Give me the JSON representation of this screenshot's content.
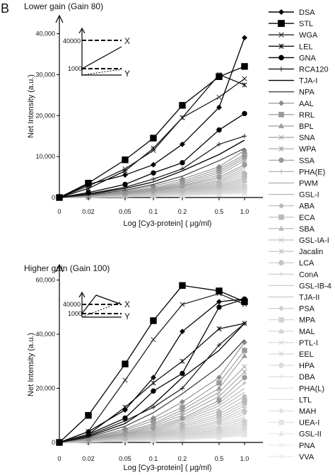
{
  "panel_label": "B",
  "legend": {
    "entries": [
      "DSA",
      "STL",
      "WGA",
      "LEL",
      "GNA",
      "RCA120",
      "TJA-I",
      "NPA",
      "AAL",
      "RRL",
      "BPL",
      "SNA",
      "WPA",
      "SSA",
      "PHA(E)",
      "PWM",
      "GSL-I",
      "ABA",
      "ECA",
      "SBA",
      "GSL-IA-I",
      "Jacalin",
      "LCA",
      "ConA",
      "GSL-IB-4",
      "TJA-II",
      "PSA",
      "MPA",
      "MAL",
      "PTL-I",
      "EEL",
      "HPA",
      "DBA",
      "PHA(L)",
      "LTL",
      "MAH",
      "UEA-I",
      "GSL-II",
      "PNA",
      "VVA"
    ],
    "markers": [
      "diamond",
      "square",
      "x",
      "star",
      "circle",
      "plus",
      "line",
      "line",
      "diamond",
      "square",
      "triangle",
      "x",
      "star",
      "circle",
      "plus",
      "line",
      "line",
      "diamond",
      "square",
      "triangle",
      "x",
      "star",
      "circle",
      "plus",
      "line",
      "line",
      "diamond",
      "square",
      "triangle",
      "x",
      "star",
      "circle",
      "plus",
      "line",
      "line",
      "diamond",
      "square",
      "triangle",
      "x",
      "star"
    ],
    "colors": [
      "#000000",
      "#000000",
      "#222222",
      "#111111",
      "#000000",
      "#222222",
      "#000000",
      "#444444",
      "#8a8a8a",
      "#999999",
      "#9c9c9c",
      "#a0a0a0",
      "#a4a4a4",
      "#9a9a9a",
      "#b0b0b0",
      "#b0b0b0",
      "#b4b4b4",
      "#b8b8b8",
      "#b8b8b8",
      "#bcbcbc",
      "#c0c0c0",
      "#c4c4c4",
      "#c4c4c4",
      "#c8c8c8",
      "#cbcbcb",
      "#cbcbcb",
      "#cecece",
      "#d2d2d2",
      "#d2d2d2",
      "#d6d6d6",
      "#d8d8d8",
      "#dadada",
      "#dcdcdc",
      "#dedede",
      "#e0e0e0",
      "#e2e2e2",
      "#e4e4e4",
      "#e6e6e6",
      "#e8e8e8",
      "#eaeaea"
    ]
  },
  "chart_data": [
    {
      "type": "line",
      "title": "Lower gain (Gain 80)",
      "xlabel": "Log [Cy3-protein]    ( μg/ml)",
      "ylabel": "Net Intensity (a.u.)",
      "x": [
        "0",
        "0.02",
        "0.05",
        "0.1",
        "0.2",
        "0.5",
        "1.0"
      ],
      "yticks": [
        "0",
        "10,000",
        "20,000",
        "30,000",
        "40,000"
      ],
      "ylim": [
        0,
        42000
      ],
      "inset": {
        "labels": [
          "40000",
          "1000",
          "X",
          "Y"
        ]
      },
      "series": [
        {
          "name": "DSA",
          "values": [
            0,
            3200,
            5500,
            8000,
            13000,
            22000,
            39000
          ]
        },
        {
          "name": "STL",
          "values": [
            0,
            3500,
            9200,
            14500,
            22500,
            29500,
            32000
          ]
        },
        {
          "name": "WGA",
          "values": [
            0,
            2800,
            7000,
            11500,
            19500,
            24500,
            29000
          ]
        },
        {
          "name": "LEL",
          "values": [
            0,
            2200,
            6500,
            12000,
            19500,
            30000,
            27500
          ]
        },
        {
          "name": "GNA",
          "values": [
            0,
            1200,
            3200,
            6000,
            8500,
            16500,
            20500
          ]
        },
        {
          "name": "RCA120",
          "values": [
            0,
            900,
            2500,
            4500,
            7000,
            13000,
            15000
          ]
        },
        {
          "name": "TJA-I",
          "values": [
            0,
            800,
            2200,
            3800,
            6500,
            10500,
            14000
          ]
        },
        {
          "name": "NPA",
          "values": [
            0,
            600,
            1800,
            3200,
            5200,
            9000,
            12000
          ]
        },
        {
          "name": "AAL",
          "values": [
            0,
            500,
            1500,
            2800,
            4500,
            7500,
            11500
          ]
        },
        {
          "name": "RRL",
          "values": [
            0,
            450,
            1300,
            2400,
            4000,
            7000,
            10500
          ]
        },
        {
          "name": "BPL",
          "values": [
            0,
            400,
            1200,
            2200,
            3600,
            6500,
            10000
          ]
        },
        {
          "name": "SNA",
          "values": [
            0,
            380,
            1100,
            2000,
            3300,
            6000,
            9500
          ]
        },
        {
          "name": "WPA",
          "values": [
            0,
            350,
            1000,
            1900,
            3000,
            5500,
            9000
          ]
        },
        {
          "name": "SSA",
          "values": [
            0,
            330,
            950,
            1700,
            2800,
            5000,
            8000
          ]
        },
        {
          "name": "PHA(E)",
          "values": [
            0,
            300,
            900,
            1600,
            2600,
            4600,
            7500
          ]
        },
        {
          "name": "PWM",
          "values": [
            0,
            280,
            800,
            1500,
            2400,
            4200,
            7000
          ]
        },
        {
          "name": "GSL-I",
          "values": [
            0,
            260,
            750,
            1400,
            2200,
            3900,
            6500
          ]
        },
        {
          "name": "ABA",
          "values": [
            0,
            240,
            700,
            1300,
            2000,
            3600,
            6000
          ]
        },
        {
          "name": "ECA",
          "values": [
            0,
            220,
            650,
            1200,
            1900,
            3300,
            5500
          ]
        },
        {
          "name": "SBA",
          "values": [
            0,
            200,
            600,
            1100,
            1800,
            3000,
            5000
          ]
        },
        {
          "name": "GSL-IA-I",
          "values": [
            0,
            190,
            550,
            1000,
            1650,
            2800,
            4600
          ]
        },
        {
          "name": "Jacalin",
          "values": [
            0,
            180,
            500,
            950,
            1500,
            2600,
            4300
          ]
        },
        {
          "name": "LCA",
          "values": [
            0,
            170,
            480,
            900,
            1400,
            2400,
            4000
          ]
        },
        {
          "name": "ConA",
          "values": [
            0,
            160,
            450,
            850,
            1300,
            2200,
            3700
          ]
        },
        {
          "name": "GSL-IB-4",
          "values": [
            0,
            150,
            420,
            800,
            1200,
            2000,
            3400
          ]
        },
        {
          "name": "TJA-II",
          "values": [
            0,
            140,
            400,
            750,
            1100,
            1900,
            3100
          ]
        },
        {
          "name": "PSA",
          "values": [
            0,
            130,
            380,
            700,
            1050,
            1800,
            2800
          ]
        },
        {
          "name": "MPA",
          "values": [
            0,
            120,
            350,
            650,
            1000,
            1650,
            2600
          ]
        },
        {
          "name": "MAL",
          "values": [
            0,
            110,
            320,
            600,
            900,
            1500,
            2400
          ]
        },
        {
          "name": "PTL-I",
          "values": [
            0,
            100,
            300,
            550,
            850,
            1400,
            2200
          ]
        },
        {
          "name": "EEL",
          "values": [
            0,
            95,
            280,
            500,
            800,
            1300,
            2000
          ]
        },
        {
          "name": "HPA",
          "values": [
            0,
            90,
            260,
            480,
            750,
            1200,
            1800
          ]
        },
        {
          "name": "DBA",
          "values": [
            0,
            85,
            240,
            450,
            700,
            1100,
            1600
          ]
        },
        {
          "name": "PHA(L)",
          "values": [
            0,
            80,
            220,
            420,
            650,
            1000,
            1500
          ]
        },
        {
          "name": "LTL",
          "values": [
            0,
            75,
            200,
            400,
            600,
            950,
            1400
          ]
        },
        {
          "name": "MAH",
          "values": [
            0,
            70,
            180,
            380,
            550,
            900,
            1300
          ]
        },
        {
          "name": "UEA-I",
          "values": [
            0,
            65,
            160,
            350,
            500,
            850,
            1200
          ]
        },
        {
          "name": "GSL-II",
          "values": [
            0,
            60,
            150,
            320,
            480,
            800,
            1100
          ]
        },
        {
          "name": "PNA",
          "values": [
            0,
            55,
            140,
            300,
            450,
            750,
            1000
          ]
        },
        {
          "name": "VVA",
          "values": [
            0,
            50,
            130,
            280,
            420,
            700,
            950
          ]
        }
      ]
    },
    {
      "type": "line",
      "title": "Higher gain (Gain 100)",
      "xlabel": "Log [Cy3-protein]    ( μg/ml)",
      "ylabel": "Net Intensity (a.u.)",
      "x": [
        "0",
        "0.02",
        "0.05",
        "0.1",
        "0.2",
        "0.5",
        "1.0"
      ],
      "yticks": [
        "0",
        "20,000",
        "40,000",
        "60,000"
      ],
      "ylim": [
        0,
        62000
      ],
      "inset": {
        "labels": [
          "40000",
          "1000",
          "X",
          "Y"
        ]
      },
      "series": [
        {
          "name": "DSA",
          "values": [
            0,
            4000,
            12000,
            24000,
            41000,
            52000,
            53000
          ]
        },
        {
          "name": "STL",
          "values": [
            0,
            10000,
            29000,
            45000,
            58000,
            56000,
            52000
          ]
        },
        {
          "name": "WGA",
          "values": [
            0,
            4000,
            23000,
            38000,
            51000,
            55000,
            51000
          ]
        },
        {
          "name": "LEL",
          "values": [
            0,
            3000,
            13000,
            22000,
            30000,
            42000,
            44000
          ]
        },
        {
          "name": "GNA",
          "values": [
            0,
            3000,
            9000,
            19000,
            25500,
            50000,
            53000
          ]
        },
        {
          "name": "RCA120",
          "values": [
            0,
            2500,
            8000,
            13000,
            20000,
            36000,
            44000
          ]
        },
        {
          "name": "TJA-I",
          "values": [
            0,
            2200,
            7000,
            14000,
            24000,
            34000,
            44000
          ]
        },
        {
          "name": "NPA",
          "values": [
            0,
            1800,
            6000,
            11000,
            18000,
            28000,
            38000
          ]
        },
        {
          "name": "AAL",
          "values": [
            0,
            1500,
            5000,
            9000,
            15000,
            24000,
            37000
          ]
        },
        {
          "name": "RRL",
          "values": [
            0,
            1300,
            4500,
            8000,
            13000,
            22000,
            34000
          ]
        },
        {
          "name": "BPL",
          "values": [
            0,
            1200,
            4000,
            7000,
            12000,
            20000,
            32000
          ]
        },
        {
          "name": "SNA",
          "values": [
            0,
            1100,
            3600,
            6500,
            11000,
            18500,
            28000
          ]
        },
        {
          "name": "WPA",
          "values": [
            0,
            1000,
            3300,
            6000,
            10000,
            17000,
            26000
          ]
        },
        {
          "name": "SSA",
          "values": [
            0,
            900,
            3000,
            5500,
            9000,
            15500,
            24000
          ]
        },
        {
          "name": "PHA(E)",
          "values": [
            0,
            850,
            2800,
            5000,
            8500,
            14500,
            22000
          ]
        },
        {
          "name": "PWM",
          "values": [
            0,
            800,
            2600,
            4600,
            8000,
            13500,
            20000
          ]
        },
        {
          "name": "GSL-I",
          "values": [
            0,
            750,
            2400,
            4200,
            7400,
            12500,
            18500
          ]
        },
        {
          "name": "ABA",
          "values": [
            0,
            700,
            2200,
            3900,
            6800,
            11500,
            17000
          ]
        },
        {
          "name": "ECA",
          "values": [
            0,
            650,
            2000,
            3600,
            6200,
            10500,
            15500
          ]
        },
        {
          "name": "SBA",
          "values": [
            0,
            600,
            1900,
            3300,
            5700,
            9600,
            14500
          ]
        },
        {
          "name": "GSL-IA-I",
          "values": [
            0,
            560,
            1800,
            3000,
            5200,
            8800,
            13500
          ]
        },
        {
          "name": "Jacalin",
          "values": [
            0,
            520,
            1650,
            2800,
            4800,
            8000,
            12500
          ]
        },
        {
          "name": "LCA",
          "values": [
            0,
            480,
            1500,
            2600,
            4400,
            7400,
            11500
          ]
        },
        {
          "name": "ConA",
          "values": [
            0,
            450,
            1400,
            2400,
            4000,
            6800,
            10500
          ]
        },
        {
          "name": "GSL-IB-4",
          "values": [
            0,
            420,
            1300,
            2200,
            3700,
            6200,
            9500
          ]
        },
        {
          "name": "TJA-II",
          "values": [
            0,
            400,
            1200,
            2000,
            3400,
            5700,
            8800
          ]
        },
        {
          "name": "PSA",
          "values": [
            0,
            380,
            1100,
            1850,
            3100,
            5200,
            8000
          ]
        },
        {
          "name": "MPA",
          "values": [
            0,
            350,
            1000,
            1700,
            2800,
            4800,
            7300
          ]
        },
        {
          "name": "MAL",
          "values": [
            0,
            330,
            950,
            1550,
            2600,
            4400,
            6700
          ]
        },
        {
          "name": "PTL-I",
          "values": [
            0,
            300,
            880,
            1400,
            2400,
            4000,
            6100
          ]
        },
        {
          "name": "EEL",
          "values": [
            0,
            280,
            820,
            1300,
            2200,
            3700,
            5600
          ]
        },
        {
          "name": "HPA",
          "values": [
            0,
            260,
            760,
            1200,
            2000,
            3400,
            5100
          ]
        },
        {
          "name": "DBA",
          "values": [
            0,
            240,
            700,
            1100,
            1850,
            3100,
            4700
          ]
        },
        {
          "name": "PHA(L)",
          "values": [
            0,
            220,
            650,
            1000,
            1700,
            2800,
            4300
          ]
        },
        {
          "name": "LTL",
          "values": [
            0,
            200,
            600,
            950,
            1550,
            2600,
            3900
          ]
        },
        {
          "name": "MAH",
          "values": [
            0,
            190,
            550,
            880,
            1400,
            2400,
            3600
          ]
        },
        {
          "name": "UEA-I",
          "values": [
            0,
            180,
            500,
            800,
            1300,
            2200,
            3300
          ]
        },
        {
          "name": "GSL-II",
          "values": [
            0,
            170,
            460,
            740,
            1200,
            2000,
            3000
          ]
        },
        {
          "name": "PNA",
          "values": [
            0,
            160,
            420,
            680,
            1100,
            1800,
            2700
          ]
        },
        {
          "name": "VVA",
          "values": [
            0,
            150,
            400,
            620,
            1000,
            1650,
            2500
          ]
        }
      ]
    }
  ]
}
